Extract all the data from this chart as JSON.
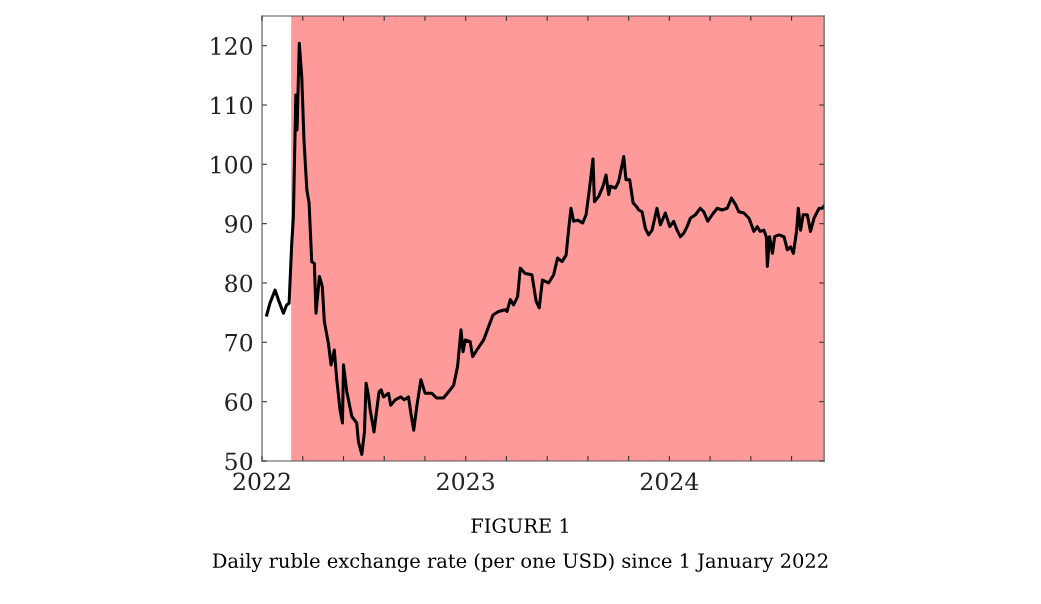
{
  "chart_data": {
    "type": "line",
    "title": "FIGURE 1",
    "subtitle": "Daily ruble exchange rate (per one USD) since 1 January 2022",
    "xlim": [
      2022,
      2024.76
    ],
    "ylim": [
      50,
      125
    ],
    "xticks": [
      2022,
      {
        "value": 2022.2,
        "label": null
      },
      {
        "value": 2022.4,
        "label": null
      },
      {
        "value": 2022.6,
        "label": null
      },
      {
        "value": 2022.8,
        "label": null
      },
      2023,
      {
        "value": 2023.2,
        "label": null
      },
      {
        "value": 2023.4,
        "label": null
      },
      {
        "value": 2023.6,
        "label": null
      },
      {
        "value": 2023.8,
        "label": null
      },
      2024,
      {
        "value": 2024.2,
        "label": null
      },
      {
        "value": 2024.4,
        "label": null
      },
      {
        "value": 2024.6,
        "label": null
      }
    ],
    "yticks": [
      50,
      60,
      70,
      80,
      90,
      100,
      110,
      120
    ],
    "grid": false,
    "legend": false,
    "marker": "none",
    "line_style": "solid",
    "bands": [
      {
        "axis": "x",
        "from": 2022.143,
        "to": 2024.76,
        "color": "#ff9a9a"
      }
    ],
    "series": [
      {
        "color": "#000000",
        "x": [
          2022.023,
          2022.039,
          2022.064,
          2022.08,
          2022.105,
          2022.121,
          2022.133,
          2022.146,
          2022.154,
          2022.166,
          2022.172,
          2022.183,
          2022.195,
          2022.206,
          2022.22,
          2022.231,
          2022.244,
          2022.257,
          2022.265,
          2022.282,
          2022.296,
          2022.306,
          2022.326,
          2022.339,
          2022.355,
          2022.367,
          2022.383,
          2022.395,
          2022.4,
          2022.416,
          2022.441,
          2022.465,
          2022.473,
          2022.49,
          2022.503,
          2022.511,
          2022.522,
          2022.531,
          2022.55,
          2022.559,
          2022.575,
          2022.585,
          2022.596,
          2022.621,
          2022.632,
          2022.654,
          2022.681,
          2022.698,
          2022.719,
          2022.731,
          2022.745,
          2022.76,
          2022.78,
          2022.801,
          2022.834,
          2022.858,
          2022.891,
          2022.924,
          2022.941,
          2022.96,
          2022.977,
          2022.987,
          2022.998,
          2023.022,
          2023.034,
          2023.055,
          2023.088,
          2023.112,
          2023.134,
          2023.161,
          2023.194,
          2023.203,
          2023.219,
          2023.235,
          2023.255,
          2023.268,
          2023.292,
          2023.325,
          2023.346,
          2023.361,
          2023.377,
          2023.407,
          2023.432,
          2023.451,
          2023.473,
          2023.493,
          2023.506,
          2023.517,
          2023.53,
          2023.55,
          2023.574,
          2023.591,
          2023.607,
          2023.625,
          2023.632,
          2023.653,
          2023.674,
          2023.689,
          2023.702,
          2023.71,
          2023.735,
          2023.751,
          2023.776,
          2023.787,
          2023.805,
          2023.822,
          2023.838,
          2023.85,
          2023.866,
          2023.882,
          2023.898,
          2023.915,
          2023.939,
          2023.956,
          2023.98,
          2024.002,
          2024.021,
          2024.038,
          2024.054,
          2024.071,
          2024.087,
          2024.103,
          2024.128,
          2024.152,
          2024.169,
          2024.189,
          2024.21,
          2024.235,
          2024.259,
          2024.284,
          2024.305,
          2024.325,
          2024.341,
          2024.366,
          2024.391,
          2024.415,
          2024.432,
          2024.445,
          2024.464,
          2024.476,
          2024.481,
          2024.492,
          2024.506,
          2024.517,
          2024.538,
          2024.563,
          2024.579,
          2024.595,
          2024.609,
          2024.625,
          2024.633,
          2024.644,
          2024.657,
          2024.677,
          2024.693,
          2024.71,
          2024.735,
          2024.751,
          2024.76
        ],
        "values": [
          74.6,
          76.6,
          78.8,
          77.2,
          74.9,
          76.3,
          76.6,
          86.7,
          91.2,
          111.7,
          105.8,
          120.4,
          114.8,
          104.1,
          95.7,
          93.5,
          83.6,
          83.3,
          74.9,
          81.1,
          79.4,
          73.5,
          69.8,
          66.2,
          68.7,
          63.7,
          58.6,
          56.4,
          66.2,
          61.7,
          57.5,
          56.4,
          53.3,
          51.1,
          54.9,
          63.1,
          61.1,
          58.6,
          54.9,
          57.5,
          61.7,
          62.0,
          60.8,
          61.4,
          59.4,
          60.3,
          60.8,
          60.3,
          60.8,
          58.0,
          55.2,
          59.2,
          63.7,
          61.4,
          61.4,
          60.6,
          60.6,
          62.0,
          62.8,
          65.9,
          72.1,
          68.4,
          70.4,
          70.1,
          67.6,
          68.7,
          70.4,
          72.6,
          74.6,
          75.2,
          75.5,
          75.2,
          77.2,
          76.3,
          77.7,
          82.5,
          81.6,
          81.4,
          76.9,
          75.8,
          80.5,
          80.0,
          81.4,
          84.2,
          83.6,
          84.7,
          89.2,
          92.6,
          90.4,
          90.6,
          90.1,
          91.5,
          95.7,
          100.9,
          93.7,
          94.6,
          96.3,
          98.2,
          94.9,
          96.3,
          96.0,
          97.1,
          101.3,
          97.4,
          97.4,
          93.5,
          92.9,
          92.3,
          92.0,
          89.2,
          88.1,
          88.9,
          92.6,
          89.8,
          91.8,
          89.5,
          90.4,
          88.9,
          87.8,
          88.4,
          89.5,
          90.9,
          91.5,
          92.6,
          92.0,
          90.4,
          91.5,
          92.6,
          92.3,
          92.6,
          94.3,
          93.2,
          92.0,
          91.8,
          90.9,
          88.7,
          89.5,
          88.7,
          88.9,
          87.8,
          82.8,
          87.8,
          85.0,
          87.8,
          88.1,
          87.8,
          85.6,
          86.1,
          85.0,
          88.9,
          92.6,
          88.9,
          91.5,
          91.5,
          88.7,
          90.9,
          92.6,
          92.6,
          93.0
        ]
      }
    ]
  }
}
